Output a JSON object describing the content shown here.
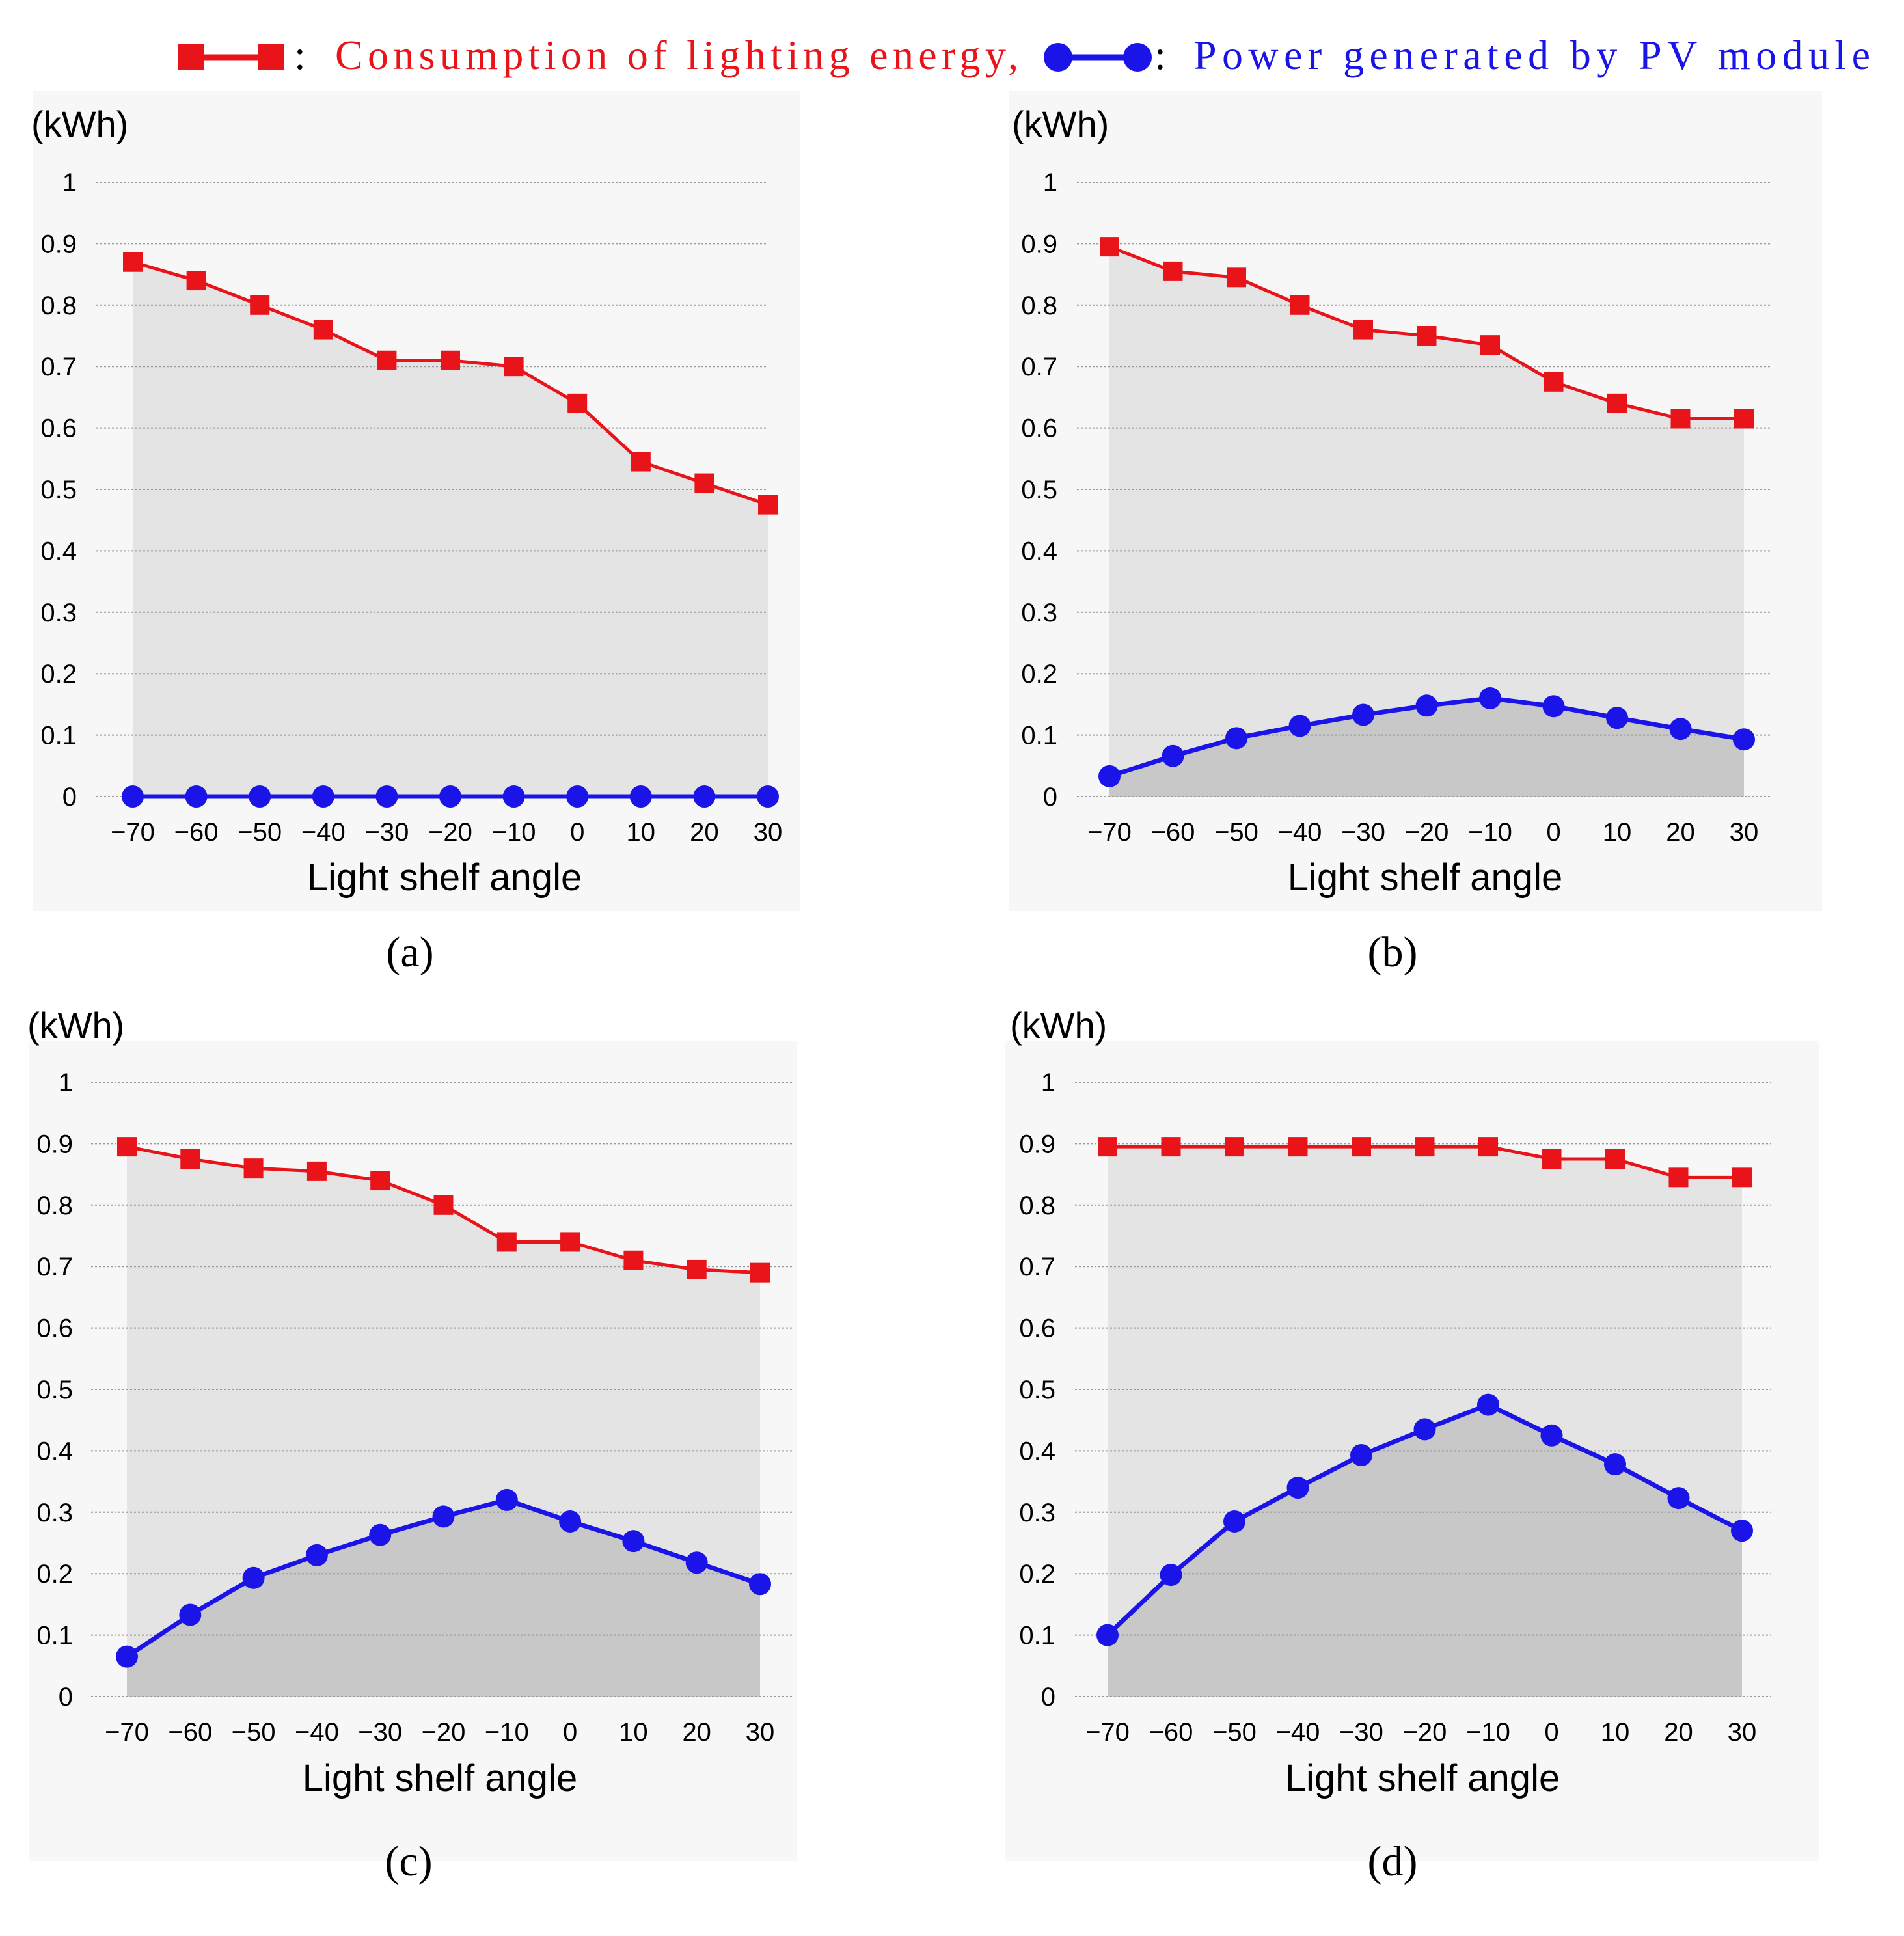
{
  "legend": {
    "series": [
      {
        "label": "Consumption of lighting energy,",
        "marker": "square",
        "color": "#e8141a"
      },
      {
        "label": "Power generated by PV module",
        "marker": "circle",
        "color": "#1a14e8"
      }
    ],
    "separator": ":"
  },
  "colors": {
    "consumption": "#e8141a",
    "pv": "#1a14e8",
    "area_light": "#e4e4e4",
    "area_dark": "#c8c8c8",
    "panel_bg": "#f7f7f7",
    "grid": "#9a9a9a"
  },
  "chart_data": [
    {
      "type": "line",
      "panel_label": "(a)",
      "unit_label": "(kWh)",
      "xlabel": "Light shelf angle",
      "ylabel": "(kWh)",
      "ylim": [
        0,
        1
      ],
      "yticks": [
        0,
        0.1,
        0.2,
        0.3,
        0.4,
        0.5,
        0.6,
        0.7,
        0.8,
        0.9,
        1
      ],
      "ytick_labels": [
        "0",
        "0.1",
        "0.2",
        "0.3",
        "0.4",
        "0.5",
        "0.6",
        "0.7",
        "0.8",
        "0.9",
        "1"
      ],
      "categories": [
        "−70",
        "−60",
        "−50",
        "−40",
        "−30",
        "−20",
        "−10",
        "0",
        "10",
        "20",
        "30"
      ],
      "series": [
        {
          "name": "Consumption of lighting energy",
          "values": [
            0.87,
            0.84,
            0.8,
            0.76,
            0.71,
            0.71,
            0.7,
            0.64,
            0.545,
            0.51,
            0.475
          ]
        },
        {
          "name": "Power generated by PV module",
          "values": [
            0,
            0,
            0,
            0,
            0,
            0,
            0,
            0,
            0,
            0,
            0
          ]
        }
      ]
    },
    {
      "type": "line",
      "panel_label": "(b)",
      "unit_label": "(kWh)",
      "xlabel": "Light shelf angle",
      "ylabel": "(kWh)",
      "ylim": [
        0,
        1
      ],
      "yticks": [
        0,
        0.1,
        0.2,
        0.3,
        0.4,
        0.5,
        0.6,
        0.7,
        0.8,
        0.9,
        1
      ],
      "ytick_labels": [
        "0",
        "0.1",
        "0.2",
        "0.3",
        "0.4",
        "0.5",
        "0.6",
        "0.7",
        "0.8",
        "0.9",
        "1"
      ],
      "categories": [
        "−70",
        "−60",
        "−50",
        "−40",
        "−30",
        "−20",
        "−10",
        "0",
        "10",
        "20",
        "30"
      ],
      "series": [
        {
          "name": "Consumption of lighting energy",
          "values": [
            0.895,
            0.855,
            0.845,
            0.8,
            0.76,
            0.75,
            0.735,
            0.675,
            0.64,
            0.615,
            0.615
          ]
        },
        {
          "name": "Power generated by PV module",
          "values": [
            0.033,
            0.066,
            0.095,
            0.115,
            0.133,
            0.148,
            0.16,
            0.147,
            0.128,
            0.11,
            0.093
          ]
        }
      ]
    },
    {
      "type": "line",
      "panel_label": "(c)",
      "unit_label": "(kWh)",
      "xlabel": "Light shelf angle",
      "ylabel": "(kWh)",
      "ylim": [
        0,
        1
      ],
      "yticks": [
        0,
        0.1,
        0.2,
        0.3,
        0.4,
        0.5,
        0.6,
        0.7,
        0.8,
        0.9,
        1
      ],
      "ytick_labels": [
        "0",
        "0.1",
        "0.2",
        "0.3",
        "0.4",
        "0.5",
        "0.6",
        "0.7",
        "0.8",
        "0.9",
        "1"
      ],
      "categories": [
        "−70",
        "−60",
        "−50",
        "−40",
        "−30",
        "−20",
        "−10",
        "0",
        "10",
        "20",
        "30"
      ],
      "series": [
        {
          "name": "Consumption of lighting energy",
          "values": [
            0.895,
            0.875,
            0.86,
            0.855,
            0.84,
            0.8,
            0.74,
            0.74,
            0.71,
            0.695,
            0.69
          ]
        },
        {
          "name": "Power generated by PV module",
          "values": [
            0.065,
            0.133,
            0.193,
            0.23,
            0.263,
            0.293,
            0.32,
            0.285,
            0.253,
            0.218,
            0.183
          ]
        }
      ]
    },
    {
      "type": "line",
      "panel_label": "(d)",
      "unit_label": "(kWh)",
      "xlabel": "Light shelf angle",
      "ylabel": "(kWh)",
      "ylim": [
        0,
        1
      ],
      "yticks": [
        0,
        0.1,
        0.2,
        0.3,
        0.4,
        0.5,
        0.6,
        0.7,
        0.8,
        0.9,
        1
      ],
      "ytick_labels": [
        "0",
        "0.1",
        "0.2",
        "0.3",
        "0.4",
        "0.5",
        "0.6",
        "0.7",
        "0.8",
        "0.9",
        "1"
      ],
      "categories": [
        "−70",
        "−60",
        "−50",
        "−40",
        "−30",
        "−20",
        "−10",
        "0",
        "10",
        "20",
        "30"
      ],
      "series": [
        {
          "name": "Consumption of lighting energy",
          "values": [
            0.895,
            0.895,
            0.895,
            0.895,
            0.895,
            0.895,
            0.895,
            0.875,
            0.875,
            0.845,
            0.845
          ]
        },
        {
          "name": "Power generated by PV module",
          "values": [
            0.1,
            0.198,
            0.285,
            0.34,
            0.393,
            0.435,
            0.475,
            0.425,
            0.378,
            0.323,
            0.27
          ]
        }
      ]
    }
  ]
}
